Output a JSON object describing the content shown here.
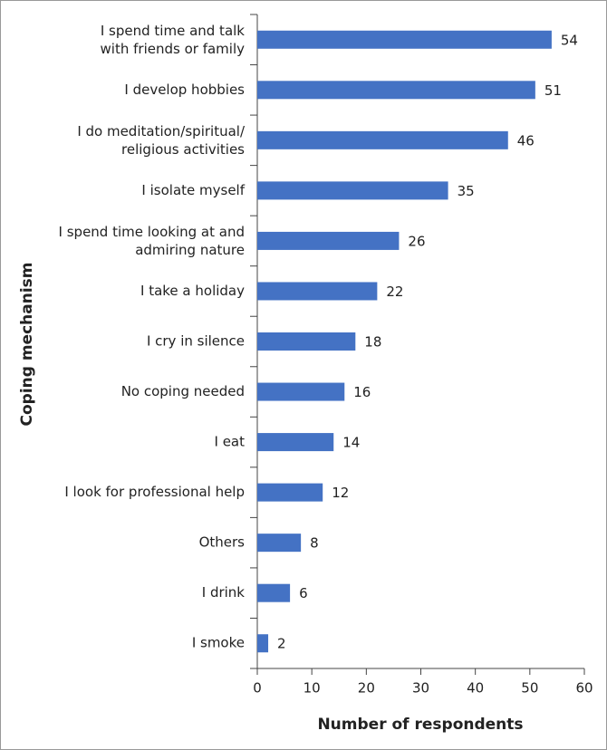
{
  "chart_data": {
    "type": "bar",
    "orientation": "horizontal",
    "x_label": "Number of respondents",
    "y_label": "Coping mechanism",
    "categories": [
      "I spend time and talk\nwith friends or family",
      "I develop hobbies",
      "I do meditation/spiritual/\nreligious activities",
      "I isolate myself",
      "I spend time looking at and\nadmiring nature",
      "I take a holiday",
      "I cry in silence",
      "No coping needed",
      "I eat",
      "I look for professional help",
      "Others",
      "I drink",
      "I smoke"
    ],
    "values": [
      54,
      51,
      46,
      35,
      26,
      22,
      18,
      16,
      14,
      12,
      8,
      6,
      2
    ],
    "color": "#4472c4",
    "xlim": [
      0,
      60
    ],
    "xticks": [
      0,
      10,
      20,
      30,
      40,
      50,
      60
    ],
    "grid": false
  }
}
